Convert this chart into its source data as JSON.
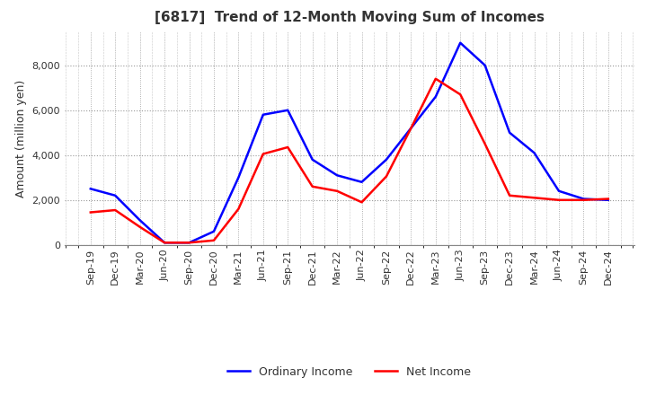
{
  "title": "[6817]  Trend of 12-Month Moving Sum of Incomes",
  "ylabel": "Amount (million yen)",
  "x_labels": [
    "Sep-19",
    "Dec-19",
    "Mar-20",
    "Jun-20",
    "Sep-20",
    "Dec-20",
    "Mar-21",
    "Jun-21",
    "Sep-21",
    "Dec-21",
    "Mar-22",
    "Jun-22",
    "Sep-22",
    "Dec-22",
    "Mar-23",
    "Jun-23",
    "Sep-23",
    "Dec-23",
    "Mar-24",
    "Jun-24",
    "Sep-24",
    "Dec-24"
  ],
  "ordinary_income": [
    2500,
    2200,
    1100,
    100,
    100,
    600,
    3000,
    5800,
    6000,
    3800,
    3100,
    2800,
    3800,
    5200,
    6600,
    9000,
    8000,
    5000,
    4100,
    2400,
    2050,
    2000
  ],
  "net_income": [
    1450,
    1550,
    800,
    100,
    100,
    200,
    1600,
    4050,
    4350,
    2600,
    2400,
    1900,
    3050,
    5200,
    7400,
    6700,
    4500,
    2200,
    2100,
    2000,
    2000,
    2050
  ],
  "ordinary_income_color": "#0000FF",
  "net_income_color": "#FF0000",
  "ylim": [
    0,
    9500
  ],
  "yticks": [
    0,
    2000,
    4000,
    6000,
    8000
  ],
  "background_color": "#ffffff",
  "grid_color": "#999999",
  "legend_ordinary": "Ordinary Income",
  "legend_net": "Net Income",
  "title_fontsize": 11,
  "label_fontsize": 9,
  "tick_fontsize": 8,
  "line_width": 1.8
}
